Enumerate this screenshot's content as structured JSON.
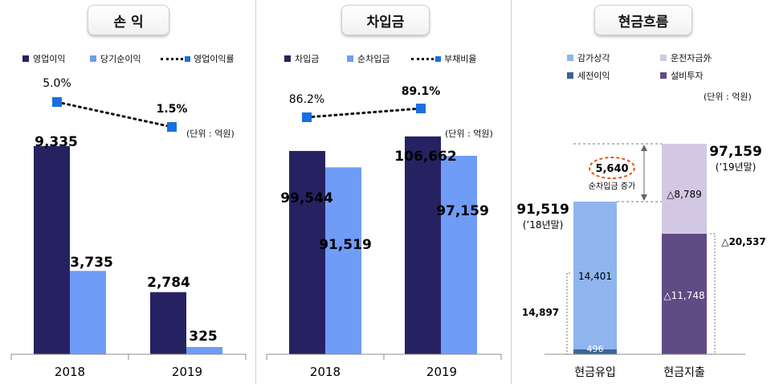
{
  "chart_data": [
    {
      "type": "bar",
      "title": "손 익",
      "categories": [
        "2018",
        "2019"
      ],
      "series": [
        {
          "name": "영업이익",
          "values": [
            9335,
            2784
          ],
          "color": "#262262"
        },
        {
          "name": "당기순이익",
          "values": [
            3735,
            325
          ],
          "color": "#6f9cf6"
        },
        {
          "name": "영업이익률",
          "values": [
            5.0,
            1.5
          ],
          "kind": "line",
          "unit": "%",
          "color": "#1a6fe0"
        }
      ],
      "value_labels": [
        "9,335",
        "2,784",
        "3,735",
        "325"
      ],
      "line_labels": [
        "5.0%",
        "1.5%"
      ],
      "unit_note": "(단위 : 억원)",
      "ylim": [
        0,
        10800
      ]
    },
    {
      "type": "bar",
      "title": "차입금",
      "categories": [
        "2018",
        "2019"
      ],
      "series": [
        {
          "name": "차입금",
          "values": [
            99544,
            106662
          ],
          "color": "#262262"
        },
        {
          "name": "순차입금",
          "values": [
            91519,
            97159
          ],
          "color": "#6f9cf6"
        },
        {
          "name": "부채비율",
          "values": [
            86.2,
            89.1
          ],
          "kind": "line",
          "unit": "%",
          "color": "#1a6fe0"
        }
      ],
      "value_labels": [
        "99,544",
        "106,662",
        "91,519",
        "97,159"
      ],
      "line_labels": [
        "86.2%",
        "89.1%"
      ],
      "unit_note": "(단위 : 억원)",
      "ylim": [
        0,
        118000
      ]
    },
    {
      "type": "bar",
      "title": "현금흐름",
      "categories": [
        "현금유입",
        "현금지출"
      ],
      "series": [
        {
          "name": "감가상각",
          "values": [
            14401,
            0
          ],
          "color": "#8fb4ee"
        },
        {
          "name": "운전자금外",
          "values": [
            0,
            8789
          ],
          "color": "#d2c8e4"
        },
        {
          "name": "세전이익",
          "values": [
            496,
            0
          ],
          "color": "#3c6595"
        },
        {
          "name": "설비투자",
          "values": [
            0,
            11748
          ],
          "color": "#614b85"
        }
      ],
      "labels": {
        "dep": "14,401",
        "pretax": "496",
        "wc": "△8,789",
        "capex": "△11,748",
        "inflow_total": "14,897",
        "outflow_total": "△20,537",
        "start_value": "91,519",
        "start_note": "(’18년말)",
        "end_value": "97,159",
        "end_note": "(’19년말)",
        "increase_value": "5,640",
        "increase_note": "순차입금 증가"
      },
      "unit_note": "(단위 : 억원)"
    }
  ]
}
